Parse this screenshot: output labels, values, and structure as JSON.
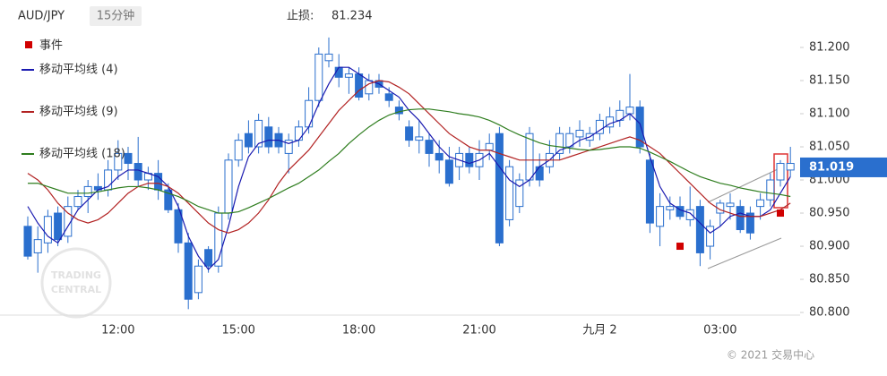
{
  "chart_data": {
    "type": "candlestick",
    "title": "AUD/JPY",
    "subtitle": "15分钟",
    "stop_loss_label": "止损:",
    "stop_loss": 81.234,
    "last_price": 81.019,
    "last_price_color": "#2a6fce",
    "watermark": [
      "TRADING",
      "CENTRAL"
    ],
    "copyright": "© 2021 交易中心",
    "up_color": "#ffffff",
    "down_color": "#2a6fce",
    "ylim": [
      80.796,
      81.26
    ],
    "yticks": [
      {
        "value": 80.8,
        "label": "80.800"
      },
      {
        "value": 80.85,
        "label": "80.850"
      },
      {
        "value": 80.9,
        "label": "80.900"
      },
      {
        "value": 80.95,
        "label": "80.950"
      },
      {
        "value": 81.0,
        "label": "81.000"
      },
      {
        "value": 81.05,
        "label": "81.050"
      },
      {
        "value": 81.1,
        "label": "81.100"
      },
      {
        "value": 81.15,
        "label": "81.150"
      },
      {
        "value": 81.2,
        "label": "81.200"
      }
    ],
    "categories": [
      null,
      null,
      null,
      null,
      null,
      null,
      null,
      null,
      null,
      "12:00",
      null,
      null,
      null,
      null,
      null,
      null,
      null,
      null,
      null,
      null,
      null,
      "15:00",
      null,
      null,
      null,
      null,
      null,
      null,
      null,
      null,
      null,
      null,
      null,
      "18:00",
      null,
      null,
      null,
      null,
      null,
      null,
      null,
      null,
      null,
      null,
      null,
      "21:00",
      null,
      null,
      null,
      null,
      null,
      null,
      null,
      null,
      null,
      null,
      null,
      "九月 2",
      null,
      null,
      null,
      null,
      null,
      null,
      null,
      null,
      null,
      null,
      null,
      "03:00",
      null,
      null,
      null,
      null,
      null,
      null,
      null
    ],
    "open": [
      80.93,
      80.89,
      80.905,
      80.95,
      80.915,
      80.96,
      80.975,
      80.99,
      80.985,
      81.015,
      81.04,
      81.025,
      81.0,
      81.01,
      80.985,
      80.955,
      80.905,
      80.83,
      80.895,
      80.87,
      80.95,
      81.03,
      81.07,
      81.05,
      81.08,
      81.07,
      81.04,
      81.06,
      81.08,
      81.12,
      81.18,
      81.17,
      81.155,
      81.16,
      81.13,
      81.15,
      81.13,
      81.11,
      81.08,
      81.06,
      81.06,
      81.04,
      81.03,
      81.02,
      81.04,
      81.02,
      81.045,
      81.07,
      80.94,
      80.96,
      81.0,
      81.02,
      81.02,
      81.04,
      81.05,
      81.065,
      81.06,
      81.07,
      81.08,
      81.09,
      81.1,
      81.11,
      81.03,
      80.93,
      80.955,
      80.96,
      80.94,
      80.96,
      80.9,
      80.95,
      80.96,
      80.96,
      80.95,
      80.96,
      80.97,
      81.0,
      81.015
    ],
    "high": [
      80.945,
      80.93,
      80.955,
      80.96,
      80.975,
      80.985,
      81.0,
      81.01,
      81.03,
      81.06,
      81.05,
      81.065,
      81.02,
      81.03,
      80.995,
      80.965,
      80.92,
      80.88,
      80.9,
      80.96,
      81.04,
      81.07,
      81.09,
      81.1,
      81.095,
      81.08,
      81.07,
      81.09,
      81.14,
      81.2,
      81.215,
      81.19,
      81.17,
      81.17,
      81.16,
      81.16,
      81.14,
      81.12,
      81.09,
      81.09,
      81.07,
      81.06,
      81.05,
      81.05,
      81.05,
      81.06,
      81.07,
      81.08,
      81.03,
      81.01,
      81.08,
      81.04,
      81.06,
      81.08,
      81.08,
      81.09,
      81.08,
      81.1,
      81.11,
      81.12,
      81.16,
      81.12,
      81.04,
      80.98,
      80.975,
      80.975,
      80.99,
      80.97,
      80.94,
      80.97,
      80.98,
      80.97,
      80.96,
      80.98,
      81.01,
      81.03,
      81.05
    ],
    "low": [
      80.88,
      80.86,
      80.89,
      80.9,
      80.905,
      80.955,
      80.95,
      80.97,
      80.975,
      81.0,
      81.0,
      80.99,
      80.985,
      80.97,
      80.95,
      80.89,
      80.805,
      80.82,
      80.86,
      80.86,
      80.94,
      81.02,
      81.04,
      81.04,
      81.04,
      81.04,
      81.01,
      81.05,
      81.07,
      81.11,
      81.17,
      81.14,
      81.13,
      81.12,
      81.12,
      81.13,
      81.11,
      81.09,
      81.05,
      81.04,
      81.02,
      81.01,
      80.99,
      81.0,
      81.01,
      81.0,
      81.03,
      80.9,
      80.93,
      80.95,
      80.99,
      80.99,
      81.01,
      81.03,
      81.04,
      81.05,
      81.05,
      81.06,
      81.07,
      81.08,
      81.09,
      81.04,
      80.92,
      80.9,
      80.94,
      80.94,
      80.93,
      80.87,
      80.88,
      80.93,
      80.94,
      80.92,
      80.91,
      80.94,
      80.96,
      80.99,
      81.005
    ],
    "close": [
      80.885,
      80.91,
      80.945,
      80.91,
      80.96,
      80.975,
      80.99,
      80.985,
      81.015,
      81.04,
      81.025,
      81.0,
      81.01,
      80.985,
      80.955,
      80.905,
      80.82,
      80.87,
      80.87,
      80.95,
      81.03,
      81.06,
      81.05,
      81.09,
      81.05,
      81.05,
      81.06,
      81.08,
      81.12,
      81.19,
      81.19,
      81.155,
      81.16,
      81.125,
      81.15,
      81.14,
      81.12,
      81.1,
      81.06,
      81.065,
      81.04,
      81.03,
      80.995,
      81.04,
      81.02,
      81.04,
      81.055,
      80.905,
      81.02,
      81.0,
      81.07,
      81.0,
      81.04,
      81.07,
      81.07,
      81.075,
      81.07,
      81.09,
      81.095,
      81.105,
      81.11,
      81.05,
      80.935,
      80.96,
      80.96,
      80.945,
      80.955,
      80.89,
      80.93,
      80.965,
      80.965,
      80.925,
      80.92,
      80.97,
      81.0,
      81.025,
      81.025
    ],
    "series": [
      {
        "name": "移动平均线 (4)",
        "color": "#1a1ab0",
        "values": [
          80.96,
          80.935,
          80.915,
          80.905,
          80.93,
          80.955,
          80.97,
          80.985,
          80.99,
          81.005,
          81.015,
          81.015,
          81.01,
          81.005,
          80.99,
          80.96,
          80.915,
          80.885,
          80.865,
          80.88,
          80.93,
          80.99,
          81.035,
          81.055,
          81.06,
          81.06,
          81.055,
          81.06,
          81.08,
          81.115,
          81.145,
          81.17,
          81.17,
          81.16,
          81.15,
          81.145,
          81.135,
          81.125,
          81.105,
          81.09,
          81.07,
          81.05,
          81.035,
          81.03,
          81.025,
          81.03,
          81.04,
          81.02,
          81.0,
          80.99,
          81.0,
          81.02,
          81.03,
          81.045,
          81.05,
          81.06,
          81.065,
          81.075,
          81.085,
          81.09,
          81.1,
          81.085,
          81.035,
          80.99,
          80.965,
          80.955,
          80.95,
          80.935,
          80.92,
          80.93,
          80.945,
          80.95,
          80.945,
          80.945,
          80.955,
          80.98,
          81.005
        ]
      },
      {
        "name": "移动平均线 (9)",
        "color": "#b22222",
        "values": [
          81.01,
          81.0,
          80.985,
          80.965,
          80.95,
          80.94,
          80.935,
          80.94,
          80.95,
          80.965,
          80.98,
          80.99,
          80.995,
          80.995,
          80.99,
          80.98,
          80.965,
          80.95,
          80.935,
          80.925,
          80.92,
          80.925,
          80.935,
          80.95,
          80.97,
          80.995,
          81.015,
          81.03,
          81.045,
          81.065,
          81.085,
          81.105,
          81.12,
          81.135,
          81.145,
          81.15,
          81.148,
          81.14,
          81.13,
          81.115,
          81.1,
          81.085,
          81.07,
          81.06,
          81.05,
          81.045,
          81.045,
          81.04,
          81.035,
          81.03,
          81.03,
          81.03,
          81.03,
          81.03,
          81.035,
          81.04,
          81.045,
          81.05,
          81.055,
          81.06,
          81.065,
          81.06,
          81.05,
          81.04,
          81.025,
          81.01,
          80.995,
          80.98,
          80.965,
          80.955,
          80.95,
          80.945,
          80.945,
          80.945,
          80.95,
          80.955,
          80.965
        ]
      },
      {
        "name": "移动平均线 (18)",
        "color": "#2e7d1e",
        "values": [
          80.995,
          80.995,
          80.99,
          80.985,
          80.98,
          80.98,
          80.98,
          80.982,
          80.985,
          80.988,
          80.99,
          80.99,
          80.988,
          80.985,
          80.98,
          80.975,
          80.968,
          80.96,
          80.955,
          80.95,
          80.95,
          80.952,
          80.958,
          80.965,
          80.972,
          80.98,
          80.988,
          80.995,
          81.005,
          81.015,
          81.028,
          81.04,
          81.055,
          81.068,
          81.08,
          81.09,
          81.098,
          81.103,
          81.106,
          81.107,
          81.107,
          81.105,
          81.103,
          81.1,
          81.098,
          81.095,
          81.09,
          81.083,
          81.075,
          81.068,
          81.062,
          81.056,
          81.052,
          81.05,
          81.048,
          81.046,
          81.045,
          81.046,
          81.048,
          81.05,
          81.05,
          81.048,
          81.042,
          81.035,
          81.028,
          81.02,
          81.012,
          81.005,
          81.0,
          80.995,
          80.992,
          80.988,
          80.985,
          80.982,
          80.98,
          80.978,
          80.975
        ]
      }
    ],
    "events": {
      "name": "事件",
      "color": "#d00000",
      "values": [
        null,
        null,
        null,
        null,
        null,
        null,
        null,
        null,
        null,
        null,
        null,
        null,
        null,
        null,
        null,
        null,
        null,
        null,
        null,
        null,
        null,
        null,
        null,
        null,
        null,
        null,
        null,
        null,
        null,
        null,
        null,
        null,
        null,
        null,
        null,
        null,
        null,
        null,
        null,
        null,
        null,
        null,
        null,
        null,
        null,
        null,
        null,
        null,
        null,
        null,
        null,
        null,
        null,
        null,
        null,
        null,
        null,
        null,
        null,
        null,
        null,
        null,
        null,
        null,
        null,
        80.9,
        null,
        null,
        null,
        null,
        null,
        null,
        null,
        null,
        null,
        80.95,
        null
      ]
    }
  }
}
